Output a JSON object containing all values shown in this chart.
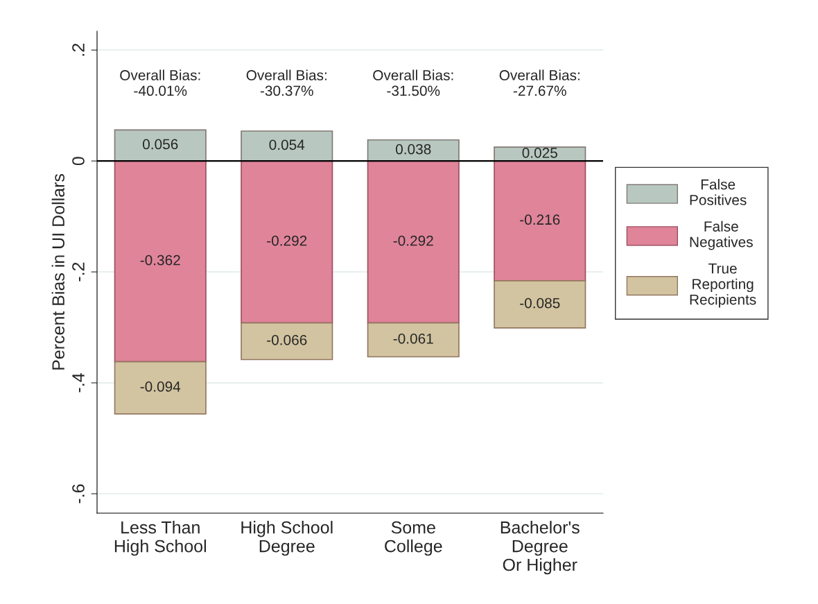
{
  "chart_data": {
    "type": "bar",
    "stacked": true,
    "ylabel": "Percent Bias in UI Dollars",
    "categories": [
      "Less Than\nHigh School",
      "High School\nDegree",
      "Some\nCollege",
      "Bachelor's\nDegree\nOr Higher"
    ],
    "series": [
      {
        "name": "False\nPositives",
        "color": "#b8c8c1",
        "values": [
          0.056,
          0.054,
          0.038,
          0.025
        ]
      },
      {
        "name": "False\nNegatives",
        "color": "#e0849a",
        "values": [
          -0.362,
          -0.292,
          -0.292,
          -0.216
        ]
      },
      {
        "name": "True\nReporting\nRecipients",
        "color": "#d2c4a0",
        "values": [
          -0.094,
          -0.066,
          -0.061,
          -0.085
        ]
      }
    ],
    "data_labels": true,
    "ylim": [
      -0.635,
      0.234
    ],
    "yticks": [
      {
        "value": 0.2,
        "label": ".2"
      },
      0,
      {
        "value": -0.2,
        "label": "-.2"
      },
      {
        "value": -0.4,
        "label": "-.4"
      },
      {
        "value": -0.6,
        "label": "-.6"
      }
    ],
    "grid": "y",
    "legend": "right",
    "ref_lines": [
      {
        "axis": "y",
        "value": 0,
        "color": "#000000"
      }
    ],
    "annotations": [
      "Overall Bias:\n-40.01%",
      "Overall Bias:\n-30.37%",
      "Overall Bias:\n-31.50%",
      "Overall Bias:\n-27.67%"
    ]
  }
}
